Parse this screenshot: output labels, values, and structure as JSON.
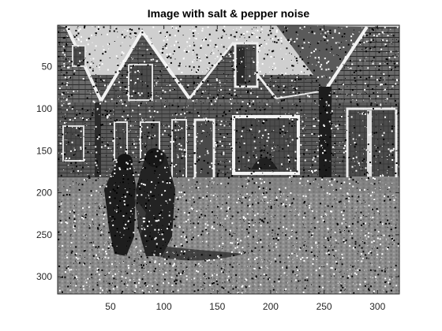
{
  "figure": {
    "title": "Image with salt & pepper noise"
  },
  "axes": {
    "xlim": [
      0.5,
      320.5
    ],
    "ylim": [
      0.5,
      320.5
    ],
    "x_ticks": [
      "50",
      "100",
      "150",
      "200",
      "250",
      "300"
    ],
    "y_ticks": [
      "50",
      "100",
      "150",
      "200",
      "250",
      "300"
    ],
    "x_tick_values": [
      50,
      100,
      150,
      200,
      250,
      300
    ],
    "y_tick_values": [
      50,
      100,
      150,
      200,
      250,
      300
    ],
    "y_direction": "reversed",
    "box": true
  },
  "image": {
    "colormap": "gray",
    "noise": "salt & pepper"
  }
}
